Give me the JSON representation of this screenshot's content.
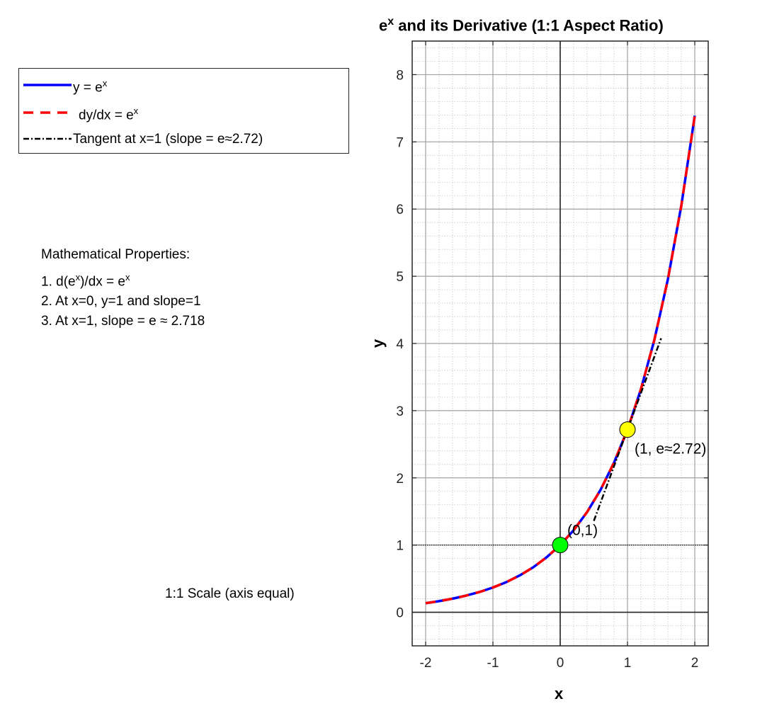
{
  "chart_data": {
    "type": "line",
    "title": "e^x and its Derivative (1:1 Aspect Ratio)",
    "title_parts": {
      "base": "e",
      "sup": "x",
      "rest": " and its Derivative (1:1 Aspect Ratio)"
    },
    "xlabel": "x",
    "ylabel": "y",
    "xlim": [
      -2.2,
      2.2
    ],
    "ylim": [
      -0.5,
      8.5
    ],
    "x_ticks": [
      -2,
      -1,
      0,
      1,
      2
    ],
    "y_ticks": [
      0,
      1,
      2,
      3,
      4,
      5,
      6,
      7,
      8
    ],
    "x_tick_labels": [
      "-2",
      "-1",
      "0",
      "1",
      "2"
    ],
    "y_tick_labels": [
      "0",
      "1",
      "2",
      "3",
      "4",
      "5",
      "6",
      "7",
      "8"
    ],
    "grid": true,
    "minor_grid": true,
    "legend_placement": "outside-left-top",
    "series": [
      {
        "legend": {
          "base": "y = e",
          "sup": "x"
        },
        "style": "solid",
        "color": "#0000ff",
        "x": [
          -2.0,
          -1.8,
          -1.6,
          -1.4,
          -1.2,
          -1.0,
          -0.8,
          -0.6,
          -0.4,
          -0.2,
          0.0,
          0.2,
          0.4,
          0.6,
          0.8,
          1.0,
          1.2,
          1.4,
          1.6,
          1.8,
          2.0
        ],
        "y": [
          0.135,
          0.165,
          0.202,
          0.247,
          0.301,
          0.368,
          0.449,
          0.549,
          0.67,
          0.819,
          1.0,
          1.221,
          1.492,
          1.822,
          2.226,
          2.718,
          3.32,
          4.055,
          4.953,
          6.05,
          7.389
        ]
      },
      {
        "legend": {
          "base": "dy/dx = e",
          "sup": "x"
        },
        "style": "dashed",
        "color": "#ff0000",
        "x": [
          -2.0,
          -1.8,
          -1.6,
          -1.4,
          -1.2,
          -1.0,
          -0.8,
          -0.6,
          -0.4,
          -0.2,
          0.0,
          0.2,
          0.4,
          0.6,
          0.8,
          1.0,
          1.2,
          1.4,
          1.6,
          1.8,
          2.0
        ],
        "y": [
          0.135,
          0.165,
          0.202,
          0.247,
          0.301,
          0.368,
          0.449,
          0.549,
          0.67,
          0.819,
          1.0,
          1.221,
          1.492,
          1.822,
          2.226,
          2.718,
          3.32,
          4.055,
          4.953,
          6.05,
          7.389
        ]
      },
      {
        "legend": {
          "base": "Tangent at x=1 (slope = e≈2.72)",
          "sup": ""
        },
        "style": "dashdot",
        "color": "#000000",
        "x": [
          0.5,
          1.5
        ],
        "y": [
          1.359,
          4.077
        ]
      }
    ],
    "reference_lines": [
      {
        "orientation": "horizontal",
        "y": 1,
        "style": "dotted",
        "color": "#000000"
      }
    ],
    "points": [
      {
        "x": 0,
        "y": 1,
        "color": "#00ff00",
        "label": "(0,1)"
      },
      {
        "x": 1,
        "y": 2.718,
        "color": "#ffff00",
        "label": "(1, e≈2.72)"
      }
    ]
  },
  "annotations": {
    "properties_title": "Mathematical Properties:",
    "property_1": {
      "pre": "1. d(e",
      "sup1": "x",
      "mid": ")/dx = e",
      "sup2": "x"
    },
    "property_2": "2. At x=0, y=1 and slope=1",
    "property_3": "3. At x=1, slope = e ≈ 2.718",
    "scale_note": "1:1 Scale (axis equal)"
  }
}
